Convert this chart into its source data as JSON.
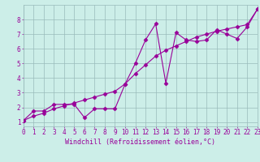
{
  "xlabel": "Windchill (Refroidissement éolien,°C)",
  "bg_color": "#cceee8",
  "line_color": "#990099",
  "grid_color": "#99bbbb",
  "x_data": [
    0,
    1,
    2,
    3,
    4,
    5,
    6,
    7,
    8,
    9,
    10,
    11,
    12,
    13,
    14,
    15,
    16,
    17,
    18,
    19,
    20,
    21,
    22,
    23
  ],
  "y_jagged": [
    1.1,
    1.75,
    1.75,
    2.2,
    2.2,
    2.2,
    1.3,
    1.9,
    1.9,
    1.9,
    3.6,
    5.0,
    6.6,
    7.7,
    3.65,
    7.1,
    6.6,
    6.5,
    6.6,
    7.3,
    7.0,
    6.7,
    7.5,
    8.7
  ],
  "y_trend": [
    1.1,
    1.4,
    1.6,
    1.9,
    2.1,
    2.3,
    2.5,
    2.7,
    2.9,
    3.1,
    3.6,
    4.3,
    4.9,
    5.5,
    5.9,
    6.2,
    6.5,
    6.8,
    7.0,
    7.2,
    7.35,
    7.5,
    7.65,
    8.7
  ],
  "xlim": [
    0,
    23
  ],
  "ylim": [
    0.7,
    9.0
  ],
  "yticks": [
    1,
    2,
    3,
    4,
    5,
    6,
    7,
    8
  ],
  "xticks": [
    0,
    1,
    2,
    3,
    4,
    5,
    6,
    7,
    8,
    9,
    10,
    11,
    12,
    13,
    14,
    15,
    16,
    17,
    18,
    19,
    20,
    21,
    22,
    23
  ],
  "fontsize_tick": 5.5,
  "fontsize_label": 6.0,
  "marker": "D",
  "marker_size": 2.5,
  "line_width": 0.8
}
